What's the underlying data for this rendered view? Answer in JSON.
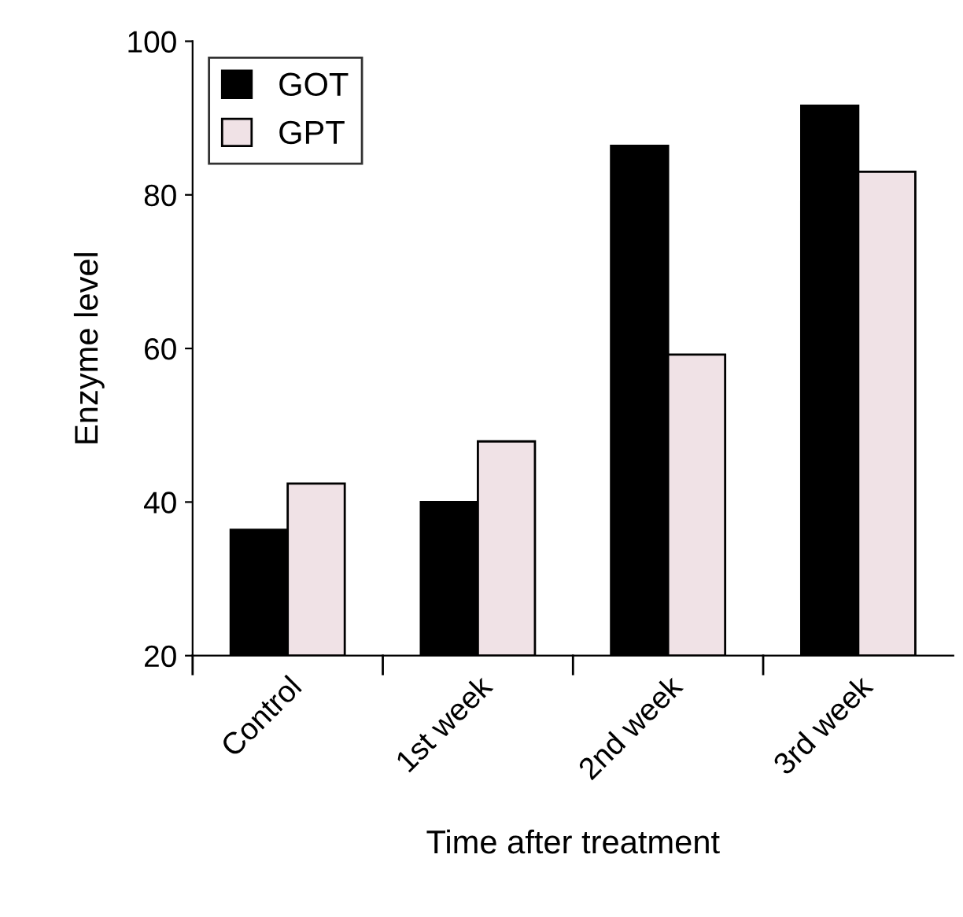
{
  "chart_data": {
    "type": "bar",
    "xlabel": "Time after treatment",
    "ylabel": "Enzyme level",
    "categories": [
      "Control",
      "1st week",
      "2nd week",
      "3rd week"
    ],
    "series": [
      {
        "name": "GOT",
        "color": "#000000",
        "values": [
          36.4,
          40.0,
          86.4,
          91.6
        ]
      },
      {
        "name": "GPT",
        "color": "#f0e2e6",
        "values": [
          42.4,
          47.9,
          59.2,
          83.0
        ]
      }
    ],
    "ylim": [
      20,
      100
    ],
    "yticks": [
      20,
      40,
      60,
      80,
      100
    ],
    "grid": false,
    "legend": "top left"
  }
}
